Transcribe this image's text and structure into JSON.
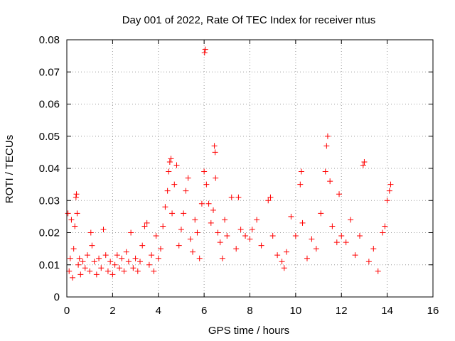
{
  "chart_data": {
    "type": "scatter",
    "title": "Day 001 of 2022, Rate Of TEC Index for receiver ntus",
    "xlabel": "GPS time / hours",
    "ylabel": "ROTI / TECUs",
    "xlim": [
      0,
      16
    ],
    "ylim": [
      0,
      0.08
    ],
    "x_ticks": [
      0,
      2,
      4,
      6,
      8,
      10,
      12,
      14,
      16
    ],
    "y_ticks": [
      0,
      0.01,
      0.02,
      0.03,
      0.04,
      0.05,
      0.06,
      0.07,
      0.08
    ],
    "x_tick_labels": [
      "0",
      "2",
      "4",
      "6",
      "8",
      "10",
      "12",
      "14",
      "16"
    ],
    "y_tick_labels": [
      "0",
      "0.01",
      "0.02",
      "0.03",
      "0.04",
      "0.05",
      "0.06",
      "0.07",
      "0.08"
    ],
    "grid": true,
    "marker": "+",
    "series": [
      {
        "name": "ROTI",
        "color": "#ff0000",
        "points": [
          [
            0.05,
            0.026
          ],
          [
            0.1,
            0.008
          ],
          [
            0.15,
            0.012
          ],
          [
            0.2,
            0.024
          ],
          [
            0.25,
            0.006
          ],
          [
            0.3,
            0.015
          ],
          [
            0.35,
            0.022
          ],
          [
            0.4,
            0.031
          ],
          [
            0.42,
            0.032
          ],
          [
            0.45,
            0.026
          ],
          [
            0.5,
            0.01
          ],
          [
            0.55,
            0.012
          ],
          [
            0.6,
            0.007
          ],
          [
            0.7,
            0.011
          ],
          [
            0.8,
            0.009
          ],
          [
            0.9,
            0.013
          ],
          [
            1.0,
            0.008
          ],
          [
            1.05,
            0.02
          ],
          [
            1.1,
            0.016
          ],
          [
            1.2,
            0.011
          ],
          [
            1.3,
            0.007
          ],
          [
            1.4,
            0.012
          ],
          [
            1.5,
            0.009
          ],
          [
            1.6,
            0.021
          ],
          [
            1.7,
            0.013
          ],
          [
            1.8,
            0.008
          ],
          [
            1.9,
            0.011
          ],
          [
            2.0,
            0.007
          ],
          [
            2.1,
            0.01
          ],
          [
            2.2,
            0.013
          ],
          [
            2.3,
            0.009
          ],
          [
            2.4,
            0.012
          ],
          [
            2.5,
            0.008
          ],
          [
            2.6,
            0.014
          ],
          [
            2.7,
            0.011
          ],
          [
            2.8,
            0.02
          ],
          [
            2.9,
            0.009
          ],
          [
            3.0,
            0.012
          ],
          [
            3.1,
            0.008
          ],
          [
            3.2,
            0.011
          ],
          [
            3.3,
            0.016
          ],
          [
            3.4,
            0.022
          ],
          [
            3.5,
            0.023
          ],
          [
            3.6,
            0.01
          ],
          [
            3.7,
            0.013
          ],
          [
            3.8,
            0.008
          ],
          [
            3.9,
            0.019
          ],
          [
            4.0,
            0.012
          ],
          [
            4.1,
            0.015
          ],
          [
            4.2,
            0.022
          ],
          [
            4.3,
            0.028
          ],
          [
            4.4,
            0.033
          ],
          [
            4.45,
            0.039
          ],
          [
            4.5,
            0.042
          ],
          [
            4.55,
            0.043
          ],
          [
            4.6,
            0.026
          ],
          [
            4.7,
            0.035
          ],
          [
            4.8,
            0.041
          ],
          [
            4.9,
            0.016
          ],
          [
            5.0,
            0.021
          ],
          [
            5.1,
            0.026
          ],
          [
            5.2,
            0.033
          ],
          [
            5.3,
            0.037
          ],
          [
            5.4,
            0.018
          ],
          [
            5.5,
            0.014
          ],
          [
            5.6,
            0.024
          ],
          [
            5.7,
            0.02
          ],
          [
            5.8,
            0.012
          ],
          [
            5.9,
            0.029
          ],
          [
            6.0,
            0.039
          ],
          [
            6.02,
            0.076
          ],
          [
            6.05,
            0.077
          ],
          [
            6.1,
            0.035
          ],
          [
            6.2,
            0.029
          ],
          [
            6.3,
            0.023
          ],
          [
            6.4,
            0.027
          ],
          [
            6.45,
            0.047
          ],
          [
            6.48,
            0.045
          ],
          [
            6.5,
            0.037
          ],
          [
            6.6,
            0.02
          ],
          [
            6.7,
            0.017
          ],
          [
            6.8,
            0.012
          ],
          [
            6.9,
            0.024
          ],
          [
            7.0,
            0.019
          ],
          [
            7.2,
            0.031
          ],
          [
            7.4,
            0.015
          ],
          [
            7.5,
            0.031
          ],
          [
            7.6,
            0.021
          ],
          [
            7.8,
            0.019
          ],
          [
            8.0,
            0.018
          ],
          [
            8.1,
            0.021
          ],
          [
            8.3,
            0.024
          ],
          [
            8.5,
            0.016
          ],
          [
            8.8,
            0.03
          ],
          [
            8.9,
            0.031
          ],
          [
            9.0,
            0.019
          ],
          [
            9.2,
            0.013
          ],
          [
            9.4,
            0.011
          ],
          [
            9.5,
            0.009
          ],
          [
            9.6,
            0.014
          ],
          [
            9.8,
            0.025
          ],
          [
            10.0,
            0.019
          ],
          [
            10.2,
            0.035
          ],
          [
            10.25,
            0.039
          ],
          [
            10.3,
            0.023
          ],
          [
            10.5,
            0.012
          ],
          [
            10.7,
            0.018
          ],
          [
            10.9,
            0.015
          ],
          [
            11.1,
            0.026
          ],
          [
            11.3,
            0.039
          ],
          [
            11.35,
            0.047
          ],
          [
            11.4,
            0.05
          ],
          [
            11.5,
            0.036
          ],
          [
            11.6,
            0.022
          ],
          [
            11.8,
            0.017
          ],
          [
            11.9,
            0.032
          ],
          [
            12.0,
            0.019
          ],
          [
            12.2,
            0.017
          ],
          [
            12.4,
            0.024
          ],
          [
            12.6,
            0.013
          ],
          [
            12.8,
            0.019
          ],
          [
            12.95,
            0.041
          ],
          [
            13.0,
            0.042
          ],
          [
            13.2,
            0.011
          ],
          [
            13.4,
            0.015
          ],
          [
            13.6,
            0.008
          ],
          [
            13.8,
            0.02
          ],
          [
            13.9,
            0.022
          ],
          [
            14.0,
            0.03
          ],
          [
            14.1,
            0.033
          ],
          [
            14.15,
            0.035
          ]
        ]
      }
    ]
  }
}
